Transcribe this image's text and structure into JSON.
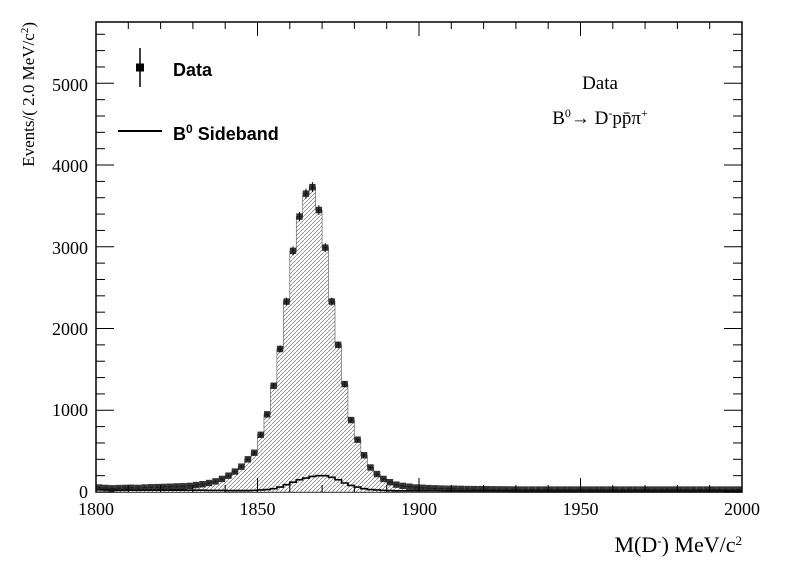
{
  "chart_data": {
    "type": "histogram",
    "xlabel": "M(D",
    "xlabel_sup": "-",
    "xlabel_unit": ") MeV/c",
    "xlabel_unit_sup": "2",
    "ylabel": "Events/( 2.0 MeV/c",
    "ylabel_sup": "2",
    "ylabel_close": ")",
    "xlim": [
      1800,
      2000
    ],
    "ylim": [
      0,
      5750
    ],
    "bin_width": 2,
    "x_ticks": [
      "1800",
      "1850",
      "1900",
      "1950",
      "2000"
    ],
    "y_ticks": [
      "0",
      "1000",
      "2000",
      "3000",
      "4000",
      "5000"
    ],
    "legend": {
      "position": "top-left",
      "data_label": "Data",
      "sideband_label_base": "B",
      "sideband_label_sup": "0",
      "sideband_label_rest": " Sideband"
    },
    "annotation": {
      "line1": "Data",
      "line2_base": "B",
      "line2_sup": "0",
      "line2_arrow": "→ D",
      "line2_sup2": "-",
      "line2_rest": "pp̄π",
      "line2_sup3": "+"
    },
    "series": [
      {
        "name": "Data",
        "style": "markers",
        "x": [
          1801,
          1803,
          1805,
          1807,
          1809,
          1811,
          1813,
          1815,
          1817,
          1819,
          1821,
          1823,
          1825,
          1827,
          1829,
          1831,
          1833,
          1835,
          1837,
          1839,
          1841,
          1843,
          1845,
          1847,
          1849,
          1851,
          1853,
          1855,
          1857,
          1859,
          1861,
          1863,
          1865,
          1867,
          1869,
          1871,
          1873,
          1875,
          1877,
          1879,
          1881,
          1883,
          1885,
          1887,
          1889,
          1891,
          1893,
          1895,
          1897,
          1899,
          1901,
          1903,
          1905,
          1907,
          1909,
          1911,
          1913,
          1915,
          1917,
          1919,
          1921,
          1923,
          1925,
          1927,
          1929,
          1931,
          1933,
          1935,
          1937,
          1939,
          1941,
          1943,
          1945,
          1947,
          1949,
          1951,
          1953,
          1955,
          1957,
          1959,
          1961,
          1963,
          1965,
          1967,
          1969,
          1971,
          1973,
          1975,
          1977,
          1979,
          1981,
          1983,
          1985,
          1987,
          1989,
          1991,
          1993,
          1995,
          1997,
          1999
        ],
        "values": [
          55,
          50,
          45,
          48,
          50,
          52,
          50,
          55,
          58,
          60,
          62,
          65,
          68,
          70,
          75,
          85,
          95,
          110,
          130,
          160,
          200,
          250,
          310,
          400,
          480,
          700,
          950,
          1300,
          1750,
          2330,
          2950,
          3370,
          3650,
          3730,
          3450,
          2990,
          2330,
          1800,
          1320,
          880,
          640,
          450,
          300,
          220,
          160,
          120,
          90,
          75,
          65,
          55,
          52,
          48,
          45,
          42,
          40,
          40,
          38,
          36,
          35,
          35,
          34,
          33,
          32,
          32,
          31,
          30,
          30,
          30,
          30,
          30,
          30,
          30,
          30,
          30,
          30,
          30,
          30,
          30,
          30,
          30,
          30,
          30,
          30,
          30,
          30,
          30,
          30,
          30,
          30,
          30,
          30,
          30,
          30,
          30,
          30,
          30,
          30,
          30,
          30,
          30
        ],
        "color": "#000000"
      },
      {
        "name": "B0 Sideband",
        "style": "line",
        "x": [
          1801,
          1803,
          1805,
          1807,
          1809,
          1811,
          1813,
          1815,
          1817,
          1819,
          1821,
          1823,
          1825,
          1827,
          1829,
          1831,
          1833,
          1835,
          1837,
          1839,
          1841,
          1843,
          1845,
          1847,
          1849,
          1851,
          1853,
          1855,
          1857,
          1859,
          1861,
          1863,
          1865,
          1867,
          1869,
          1871,
          1873,
          1875,
          1877,
          1879,
          1881,
          1883,
          1885,
          1887,
          1889,
          1891,
          1893,
          1895,
          1897,
          1899,
          1901,
          1903,
          1905,
          1907,
          1909,
          1911,
          1913,
          1915,
          1917,
          1919,
          1921,
          1923,
          1925,
          1927,
          1929,
          1931,
          1933,
          1935,
          1937,
          1939,
          1941,
          1943,
          1945,
          1947,
          1949,
          1951,
          1953,
          1955,
          1957,
          1959,
          1961,
          1963,
          1965,
          1967,
          1969,
          1971,
          1973,
          1975,
          1977,
          1979,
          1981,
          1983,
          1985,
          1987,
          1989,
          1991,
          1993,
          1995,
          1997,
          1999
        ],
        "values": [
          30,
          28,
          25,
          22,
          22,
          22,
          22,
          22,
          22,
          22,
          22,
          22,
          22,
          22,
          22,
          22,
          22,
          20,
          20,
          20,
          18,
          18,
          18,
          18,
          20,
          25,
          30,
          40,
          60,
          90,
          120,
          150,
          170,
          190,
          200,
          200,
          180,
          150,
          110,
          80,
          60,
          40,
          30,
          25,
          20,
          18,
          15,
          15,
          15,
          15,
          15,
          15,
          15,
          15,
          15,
          15,
          15,
          15,
          15,
          15,
          15,
          15,
          15,
          15,
          15,
          15,
          15,
          15,
          15,
          15,
          15,
          15,
          15,
          15,
          15,
          15,
          15,
          15,
          15,
          15,
          15,
          15,
          15,
          15,
          15,
          15,
          15,
          15,
          15,
          15,
          15,
          15,
          15,
          15,
          15,
          15,
          15,
          15,
          15,
          15
        ],
        "color": "#000000"
      }
    ]
  }
}
